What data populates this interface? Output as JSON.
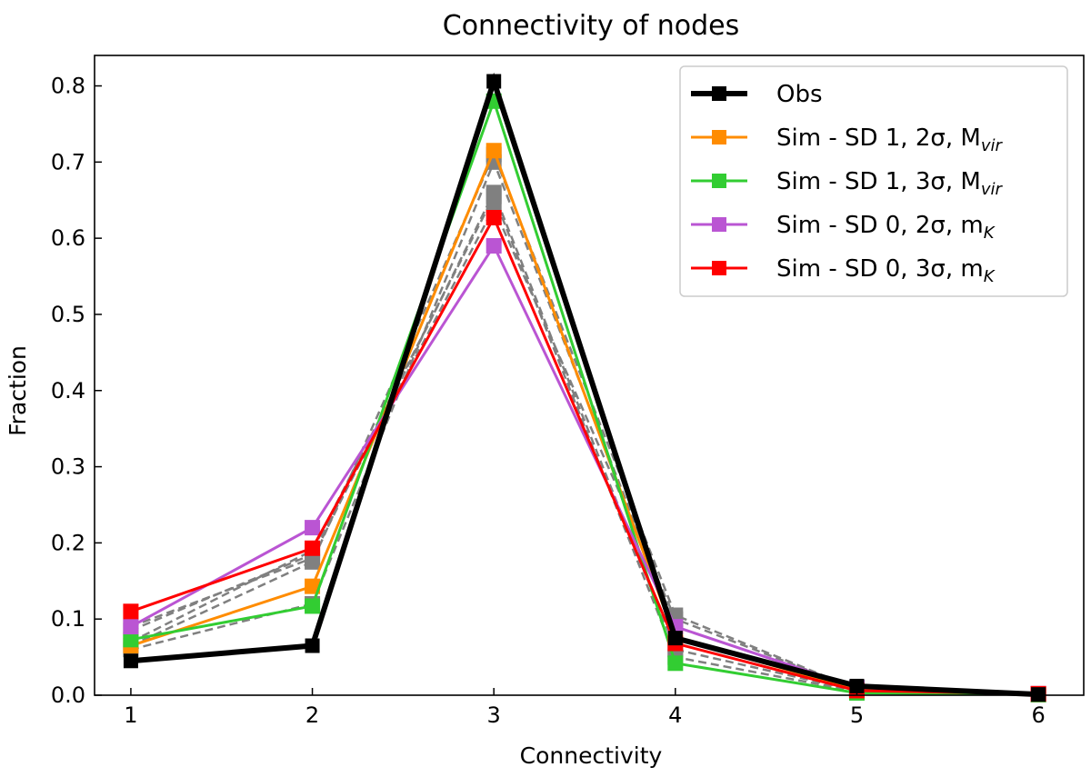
{
  "chart_data": {
    "type": "line",
    "title": "Connectivity of nodes",
    "xlabel": "Connectivity",
    "ylabel": "Fraction",
    "xlim": [
      0.8,
      6.25
    ],
    "ylim": [
      0.0,
      0.84
    ],
    "x_ticks": [
      1,
      2,
      3,
      4,
      5,
      6
    ],
    "y_ticks": [
      0.0,
      0.1,
      0.2,
      0.3,
      0.4,
      0.5,
      0.6,
      0.7,
      0.8
    ],
    "y_tick_labels": [
      "0.0",
      "0.1",
      "0.2",
      "0.3",
      "0.4",
      "0.5",
      "0.6",
      "0.7",
      "0.8"
    ],
    "grid": false,
    "legend_position": "top-right",
    "x": [
      1,
      2,
      3,
      4,
      5,
      6
    ],
    "series": [
      {
        "legend": "gray-dashed",
        "color": "#808080",
        "style": "dashed",
        "values": [
          0.065,
          0.175,
          0.71,
          0.105,
          0.008,
          0.001
        ]
      },
      {
        "legend": "gray-dashed",
        "color": "#808080",
        "style": "dashed",
        "values": [
          0.07,
          0.19,
          0.655,
          0.05,
          0.005,
          0.001
        ]
      },
      {
        "legend": "gray-dashed",
        "color": "#808080",
        "style": "dashed",
        "values": [
          0.085,
          0.185,
          0.64,
          0.1,
          0.008,
          0.001
        ]
      },
      {
        "legend": "gray-dashed",
        "color": "#808080",
        "style": "dashed",
        "values": [
          0.09,
          0.18,
          0.66,
          0.06,
          0.006,
          0.001
        ]
      },
      {
        "legend": "gray-dashed",
        "color": "#808080",
        "style": "dashed",
        "values": [
          0.06,
          0.12,
          0.7,
          0.09,
          0.01,
          0.001
        ]
      },
      {
        "legend": "Sim - SD 1, 2σ, M_vir",
        "color": "#ff8c00",
        "style": "solid",
        "values": [
          0.065,
          0.143,
          0.715,
          0.075,
          0.008,
          0.001
        ]
      },
      {
        "legend": "Sim - SD 1, 3σ, M_vir",
        "color": "#32cd32",
        "style": "solid",
        "values": [
          0.073,
          0.117,
          0.78,
          0.042,
          0.003,
          0.001
        ]
      },
      {
        "legend": "Sim - SD 0, 2σ, m_K",
        "color": "#ba55d3",
        "style": "solid",
        "values": [
          0.09,
          0.22,
          0.59,
          0.09,
          0.01,
          0.002
        ]
      },
      {
        "legend": "Sim - SD 0, 3σ, m_K",
        "color": "#ff0000",
        "style": "solid",
        "values": [
          0.11,
          0.193,
          0.627,
          0.068,
          0.006,
          0.002
        ]
      },
      {
        "legend": "Obs",
        "color": "#000000",
        "style": "solid",
        "values": [
          0.045,
          0.065,
          0.806,
          0.075,
          0.012,
          0.001
        ]
      }
    ],
    "legend_entries": [
      {
        "main": "Obs",
        "sub": "",
        "color": "#000000",
        "thick": true
      },
      {
        "main": "Sim - SD 1, 2σ, M",
        "sub": "vir",
        "color": "#ff8c00",
        "thick": false
      },
      {
        "main": "Sim - SD 1, 3σ, M",
        "sub": "vir",
        "color": "#32cd32",
        "thick": false
      },
      {
        "main": "Sim - SD 0, 2σ, m",
        "sub": "K",
        "color": "#ba55d3",
        "thick": false
      },
      {
        "main": "Sim - SD 0, 3σ, m",
        "sub": "K",
        "color": "#ff0000",
        "thick": false
      }
    ]
  }
}
